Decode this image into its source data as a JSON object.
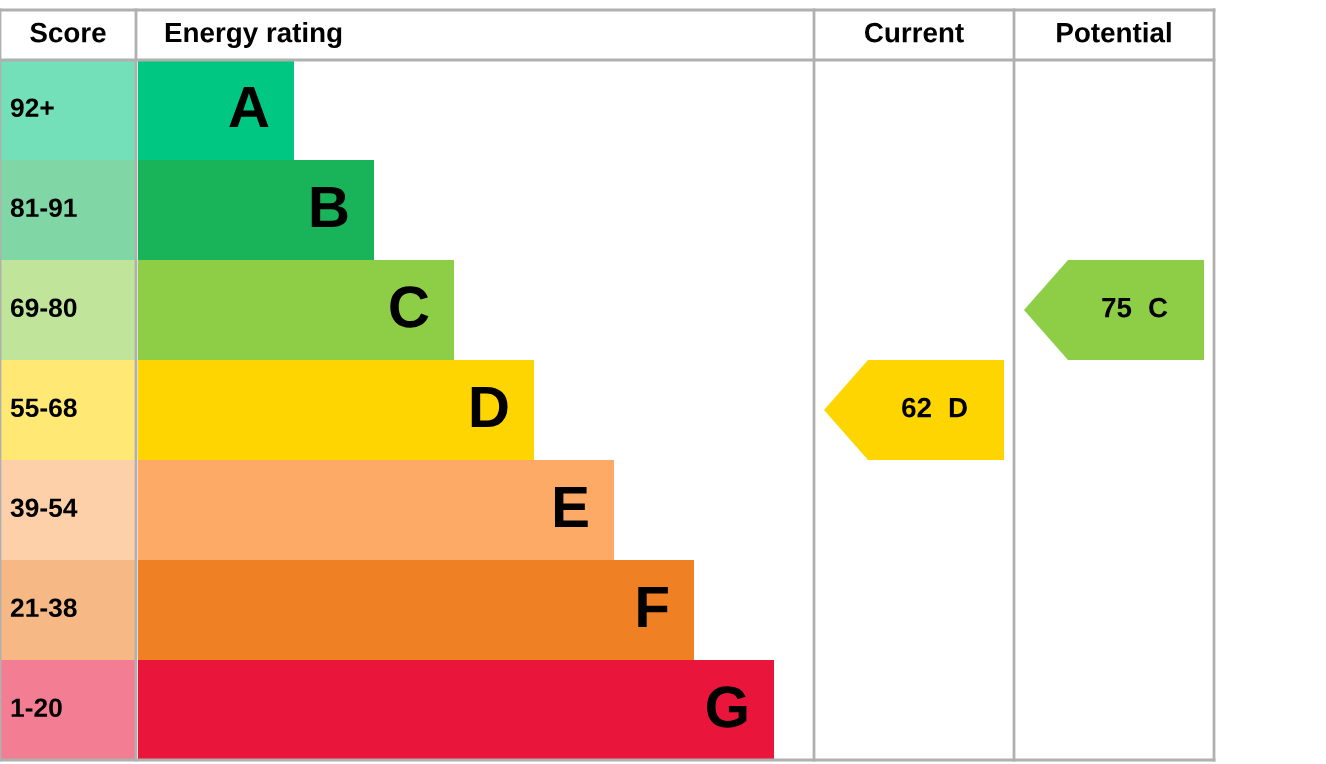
{
  "chart_data": {
    "type": "other",
    "ylabel": "Score",
    "xlabel": "Energy rating",
    "categories": [
      "A",
      "B",
      "C",
      "D",
      "E",
      "F",
      "G"
    ],
    "y_categories": [
      "92+",
      "81-91",
      "69-80",
      "55-68",
      "39-54",
      "21-38",
      "1-20"
    ],
    "colors": [
      "#00c781",
      "#19b459",
      "#8dce46",
      "#ffd500",
      "#fcaa65",
      "#ef8023",
      "#e9153b"
    ],
    "annotations": [
      "Current",
      "Potential"
    ],
    "data_labels": true,
    "series": [
      {
        "color": "#ffd500",
        "values": [
          null,
          null,
          null,
          62,
          null,
          null,
          null
        ]
      },
      {
        "color": "#8dce46",
        "values": [
          null,
          null,
          75,
          null,
          null,
          null,
          null
        ]
      }
    ]
  }
}
